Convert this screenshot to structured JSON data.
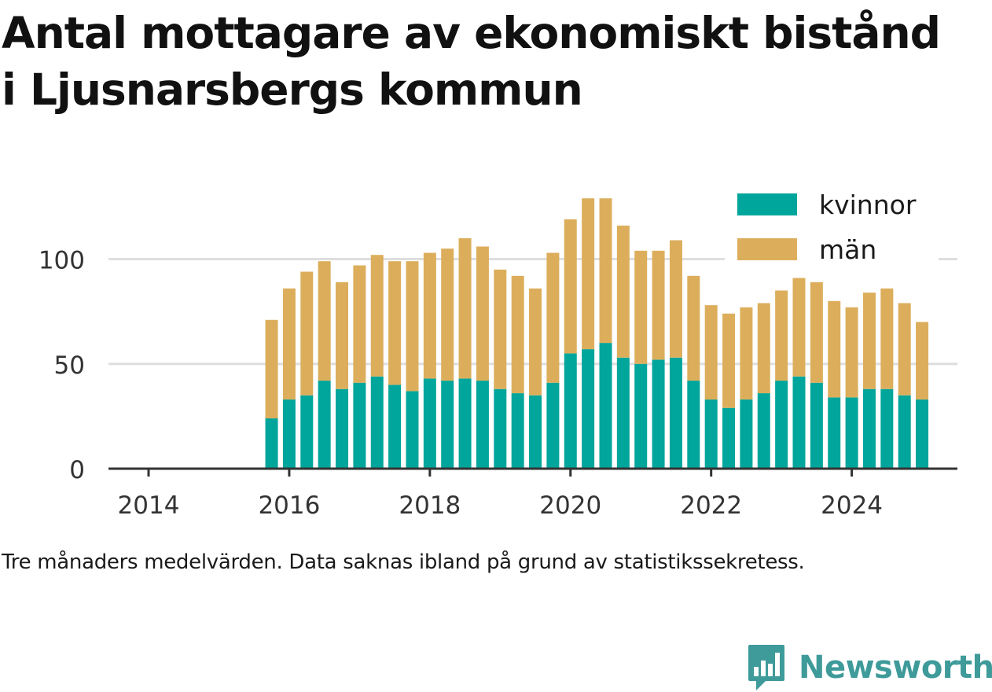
{
  "title_line1": "Antal mottagare av ekonomiskt bistånd",
  "title_line2": "i Ljusnarsbergs kommun",
  "note": "Tre månaders medelvärden. Data saknas ibland på grund av statistikssekretess.",
  "brand": {
    "name": "Newsworthy",
    "icon": "newsworthy-logo-icon",
    "color": "#3f9a9a"
  },
  "chart_data": {
    "type": "bar",
    "stacked": true,
    "x_type": "date",
    "x_tick_labels": [
      "2014",
      "2016",
      "2018",
      "2020",
      "2022",
      "2024"
    ],
    "xlim": [
      "2013-09",
      "2025-09"
    ],
    "y_ticks": [
      0,
      50,
      100
    ],
    "ylim": [
      0,
      135
    ],
    "grid": "horizontal",
    "legend_position": "top-right",
    "x": [
      "2015-10",
      "2016-01",
      "2016-04",
      "2016-07",
      "2016-10",
      "2017-01",
      "2017-04",
      "2017-07",
      "2017-10",
      "2018-01",
      "2018-04",
      "2018-07",
      "2018-10",
      "2019-01",
      "2019-04",
      "2019-07",
      "2019-10",
      "2020-01",
      "2020-04",
      "2020-07",
      "2020-10",
      "2021-01",
      "2021-04",
      "2021-07",
      "2021-10",
      "2022-01",
      "2022-04",
      "2022-07",
      "2022-10",
      "2023-01",
      "2023-04",
      "2023-07",
      "2023-10",
      "2024-01",
      "2024-04",
      "2024-07",
      "2024-10",
      "2025-01"
    ],
    "series": [
      {
        "name": "kvinnor",
        "color": "#00a59b",
        "values": [
          24,
          33,
          35,
          42,
          38,
          41,
          44,
          40,
          37,
          43,
          42,
          43,
          42,
          38,
          36,
          35,
          41,
          55,
          57,
          60,
          53,
          50,
          52,
          53,
          42,
          33,
          29,
          33,
          36,
          42,
          44,
          41,
          34,
          34,
          38,
          38,
          35,
          33
        ]
      },
      {
        "name": "män",
        "color": "#dcae5c",
        "values": [
          47,
          53,
          59,
          57,
          51,
          56,
          58,
          59,
          62,
          60,
          63,
          67,
          64,
          57,
          56,
          51,
          62,
          64,
          72,
          69,
          63,
          54,
          52,
          56,
          50,
          45,
          45,
          44,
          43,
          43,
          47,
          48,
          46,
          43,
          46,
          48,
          44,
          37
        ]
      }
    ]
  }
}
